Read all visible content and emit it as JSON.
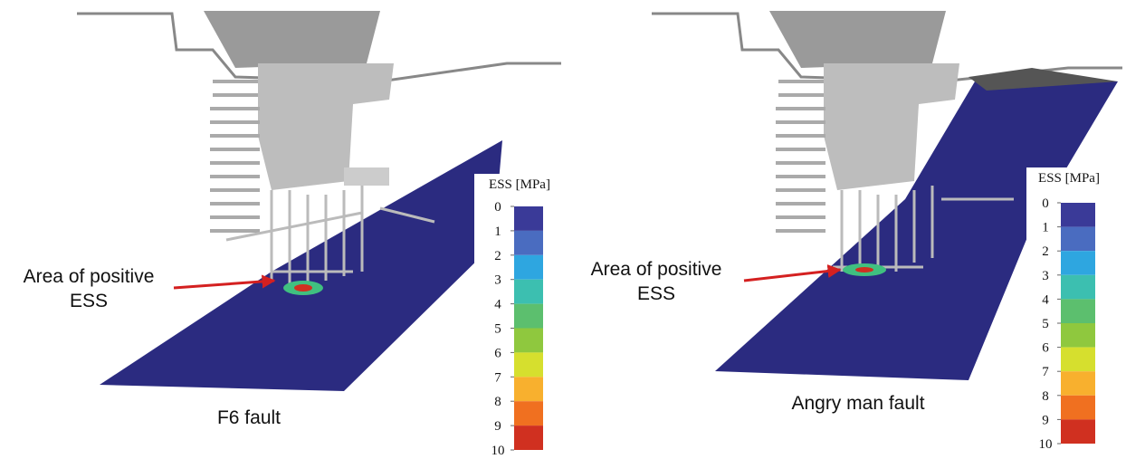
{
  "panels": [
    {
      "caption": "F6 fault",
      "annotation": [
        "Area of positive",
        "ESS"
      ],
      "colorbar": {
        "title": "ESS [MPa]",
        "ticks": [
          0,
          1,
          2,
          3,
          4,
          5,
          6,
          7,
          8,
          9,
          10
        ],
        "colors": [
          "#3a3a98",
          "#4a6cc0",
          "#2ea6e0",
          "#3cbfb0",
          "#5cbf6e",
          "#8fc83e",
          "#d6df2e",
          "#f8b02e",
          "#f07020",
          "#d03020"
        ]
      }
    },
    {
      "caption": "Angry man fault",
      "annotation": [
        "Area of positive",
        "ESS"
      ],
      "colorbar": {
        "title": "ESS [MPa]",
        "ticks": [
          0,
          1,
          2,
          3,
          4,
          5,
          6,
          7,
          8,
          9,
          10
        ],
        "colors": [
          "#3a3a98",
          "#4a6cc0",
          "#2ea6e0",
          "#3cbfb0",
          "#5cbf6e",
          "#8fc83e",
          "#d6df2e",
          "#f8b02e",
          "#f07020",
          "#d03020"
        ]
      }
    }
  ]
}
